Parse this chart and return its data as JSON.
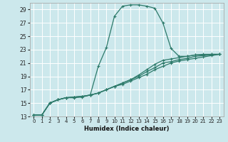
{
  "xlabel": "Humidex (Indice chaleur)",
  "bg_color": "#cce8ec",
  "grid_color": "#ffffff",
  "line_color": "#2d7a6a",
  "xlim": [
    -0.5,
    23.5
  ],
  "ylim": [
    13,
    30
  ],
  "xticks": [
    0,
    1,
    2,
    3,
    4,
    5,
    6,
    7,
    8,
    9,
    10,
    11,
    12,
    13,
    14,
    15,
    16,
    17,
    18,
    19,
    20,
    21,
    22,
    23
  ],
  "yticks": [
    13,
    15,
    17,
    19,
    21,
    23,
    25,
    27,
    29
  ],
  "series": [
    {
      "x": [
        0,
        1,
        2,
        3,
        4,
        5,
        6,
        7,
        8,
        9,
        10,
        11,
        12,
        13,
        14,
        15,
        16,
        17,
        18,
        19,
        20,
        21,
        22,
        23
      ],
      "y": [
        13.2,
        13.2,
        15.0,
        15.5,
        15.8,
        15.8,
        15.9,
        16.2,
        20.5,
        23.3,
        28.0,
        29.5,
        29.7,
        29.7,
        29.5,
        29.2,
        27.0,
        23.2,
        22.0,
        22.0,
        22.2,
        22.2,
        22.3,
        22.3
      ]
    },
    {
      "x": [
        0,
        1,
        2,
        3,
        4,
        5,
        6,
        7,
        8,
        9,
        10,
        11,
        12,
        13,
        14,
        15,
        16,
        17,
        18,
        19,
        20,
        21,
        22,
        23
      ],
      "y": [
        13.2,
        13.2,
        15.0,
        15.5,
        15.8,
        15.9,
        16.0,
        16.2,
        16.5,
        17.0,
        17.5,
        18.0,
        18.5,
        19.2,
        20.0,
        20.8,
        21.4,
        21.6,
        21.8,
        22.0,
        22.2,
        22.3,
        22.3,
        22.3
      ]
    },
    {
      "x": [
        0,
        1,
        2,
        3,
        4,
        5,
        6,
        7,
        8,
        9,
        10,
        11,
        12,
        13,
        14,
        15,
        16,
        17,
        18,
        19,
        20,
        21,
        22,
        23
      ],
      "y": [
        13.2,
        13.2,
        15.0,
        15.5,
        15.8,
        15.9,
        16.0,
        16.2,
        16.5,
        17.0,
        17.5,
        18.0,
        18.5,
        19.0,
        19.7,
        20.3,
        21.0,
        21.2,
        21.5,
        21.7,
        22.0,
        22.1,
        22.2,
        22.3
      ]
    },
    {
      "x": [
        0,
        1,
        2,
        3,
        4,
        5,
        6,
        7,
        8,
        9,
        10,
        11,
        12,
        13,
        14,
        15,
        16,
        17,
        18,
        19,
        20,
        21,
        22,
        23
      ],
      "y": [
        13.2,
        13.2,
        15.0,
        15.5,
        15.8,
        15.9,
        16.0,
        16.2,
        16.5,
        17.0,
        17.5,
        17.8,
        18.3,
        18.8,
        19.3,
        20.0,
        20.5,
        21.0,
        21.3,
        21.5,
        21.7,
        21.9,
        22.1,
        22.3
      ]
    }
  ]
}
